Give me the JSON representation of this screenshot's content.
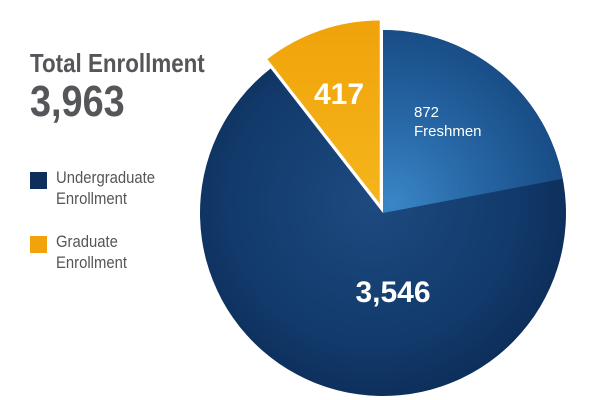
{
  "header": {
    "title": "Total Enrollment",
    "total": "3,963"
  },
  "legend": [
    {
      "line1": "Undergraduate",
      "line2": "Enrollment",
      "color": "#0e2f5c"
    },
    {
      "line1": "Graduate",
      "line2": "Enrollment",
      "color": "#f0a30a"
    }
  ],
  "chart_data": {
    "type": "pie",
    "title": "Total Enrollment",
    "total": 3963,
    "slices": [
      {
        "name": "Undergraduate Enrollment",
        "value": 3546,
        "label": "3,546",
        "color": "#0e2f5c"
      },
      {
        "name": "Graduate Enrollment",
        "value": 417,
        "label": "417",
        "color": "#f0a30a",
        "exploded": true
      }
    ],
    "sub_slice": {
      "parent": "Undergraduate Enrollment",
      "value": 872,
      "label_value": "872",
      "label_text": "Freshmen",
      "color": "#2a6aa8"
    }
  }
}
